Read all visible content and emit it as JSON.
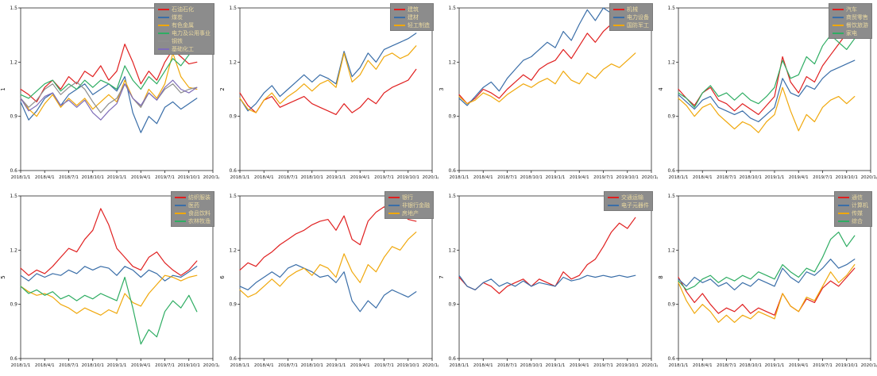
{
  "figure": {
    "background": "#ffffff",
    "axis_color": "#262626",
    "tick_label_color": "#1a1a1a",
    "legend_bg": "#8c8c8c",
    "legend_text_color": "#ead9a0",
    "y_tick_labels": [
      "0.6",
      "0.9",
      "1.2",
      "1.5"
    ],
    "x_tick_labels": [
      "2018/1/1",
      "2018/4/1",
      "2018/7/1",
      "2018/10/1",
      "2019/1/1",
      "2019/4/1",
      "2019/7/1",
      "2019/10/1",
      "2020/1/1"
    ],
    "x_axis_month_range": [
      0,
      24
    ],
    "x_month_indices": [
      0,
      1,
      2,
      3,
      4,
      5,
      6,
      7,
      8,
      9,
      10,
      11,
      12,
      13,
      14,
      15,
      16,
      17,
      18,
      19,
      20,
      21,
      22
    ]
  },
  "palette": {
    "red": "#e02020",
    "blue": "#3a6ea8",
    "yellow": "#f0a80c",
    "green": "#2fad63",
    "gray": "#8f8f8f",
    "purple": "#7e6cb8"
  },
  "chart_data": [
    {
      "type": "line",
      "ylabel": "1",
      "ylim": [
        0.6,
        1.5
      ],
      "grid": false,
      "legend_position": "top-right",
      "series": [
        {
          "name": "石油石化",
          "color": "red",
          "values": [
            1.05,
            1.02,
            0.98,
            1.06,
            1.1,
            1.05,
            1.12,
            1.08,
            1.15,
            1.12,
            1.18,
            1.1,
            1.15,
            1.3,
            1.2,
            1.08,
            1.15,
            1.1,
            1.2,
            1.27,
            1.23,
            1.19,
            1.2
          ]
        },
        {
          "name": "煤炭",
          "color": "blue",
          "values": [
            0.98,
            0.88,
            0.93,
            1.0,
            1.03,
            0.96,
            1.02,
            1.05,
            1.08,
            1.02,
            1.05,
            1.08,
            1.04,
            1.12,
            0.92,
            0.81,
            0.9,
            0.86,
            0.95,
            0.98,
            0.94,
            0.97,
            1.0
          ]
        },
        {
          "name": "有色金属",
          "color": "yellow",
          "values": [
            1.0,
            0.94,
            0.9,
            0.97,
            1.02,
            0.95,
            1.0,
            0.96,
            1.0,
            0.94,
            0.98,
            1.02,
            0.98,
            1.1,
            1.0,
            0.95,
            1.05,
            1.0,
            1.08,
            1.25,
            1.12,
            1.06,
            1.05
          ]
        },
        {
          "name": "电力及公用事业",
          "color": "green",
          "values": [
            1.02,
            1.0,
            1.04,
            1.08,
            1.1,
            1.04,
            1.08,
            1.05,
            1.1,
            1.06,
            1.1,
            1.08,
            1.05,
            1.18,
            1.1,
            1.05,
            1.12,
            1.08,
            1.15,
            1.22,
            1.18,
            1.24,
            1.28
          ]
        },
        {
          "name": "钢铁",
          "color": "gray",
          "values": [
            1.0,
            0.95,
            0.99,
            1.05,
            1.08,
            1.02,
            1.06,
            1.09,
            1.05,
            0.98,
            0.92,
            0.97,
            1.0,
            1.08,
            1.0,
            0.95,
            1.03,
            0.99,
            1.05,
            1.08,
            1.03,
            1.05,
            1.06
          ]
        },
        {
          "name": "基础化工",
          "color": "purple",
          "values": [
            1.0,
            0.93,
            0.96,
            1.01,
            1.03,
            0.96,
            0.99,
            0.95,
            0.99,
            0.92,
            0.88,
            0.93,
            0.97,
            1.08,
            1.0,
            0.96,
            1.03,
            0.99,
            1.06,
            1.1,
            1.05,
            1.03,
            1.06
          ]
        }
      ]
    },
    {
      "type": "line",
      "ylabel": "2",
      "ylim": [
        0.6,
        1.5
      ],
      "grid": false,
      "legend_position": "top-right",
      "series": [
        {
          "name": "建筑",
          "color": "red",
          "values": [
            1.03,
            0.96,
            0.92,
            0.99,
            1.01,
            0.95,
            0.97,
            0.99,
            1.01,
            0.97,
            0.95,
            0.93,
            0.91,
            0.97,
            0.92,
            0.95,
            1.0,
            0.97,
            1.03,
            1.06,
            1.08,
            1.1,
            1.16
          ]
        },
        {
          "name": "建材",
          "color": "blue",
          "values": [
            1.0,
            0.93,
            0.97,
            1.03,
            1.07,
            1.01,
            1.05,
            1.09,
            1.13,
            1.09,
            1.13,
            1.11,
            1.08,
            1.26,
            1.12,
            1.17,
            1.25,
            1.2,
            1.27,
            1.29,
            1.31,
            1.33,
            1.36
          ]
        },
        {
          "name": "轻工制造",
          "color": "yellow",
          "values": [
            1.0,
            0.94,
            0.92,
            0.99,
            1.03,
            0.97,
            1.01,
            1.04,
            1.08,
            1.04,
            1.08,
            1.1,
            1.06,
            1.25,
            1.09,
            1.13,
            1.21,
            1.16,
            1.23,
            1.25,
            1.22,
            1.24,
            1.29
          ]
        }
      ]
    },
    {
      "type": "line",
      "ylabel": "3",
      "ylim": [
        0.6,
        1.5
      ],
      "grid": false,
      "legend_position": "top-right",
      "series": [
        {
          "name": "机械",
          "color": "red",
          "values": [
            1.02,
            0.97,
            1.0,
            1.05,
            1.03,
            1.0,
            1.05,
            1.09,
            1.13,
            1.1,
            1.16,
            1.19,
            1.21,
            1.27,
            1.22,
            1.29,
            1.36,
            1.31,
            1.37,
            1.41,
            1.39,
            1.43,
            1.48
          ]
        },
        {
          "name": "电力设备",
          "color": "blue",
          "values": [
            1.0,
            0.96,
            1.01,
            1.06,
            1.09,
            1.04,
            1.11,
            1.16,
            1.21,
            1.23,
            1.27,
            1.31,
            1.28,
            1.37,
            1.32,
            1.41,
            1.49,
            1.43,
            1.5,
            1.47,
            1.49,
            1.5,
            1.5
          ]
        },
        {
          "name": "国防军工",
          "color": "yellow",
          "values": [
            1.01,
            0.97,
            0.99,
            1.03,
            1.01,
            0.98,
            1.02,
            1.05,
            1.08,
            1.06,
            1.09,
            1.11,
            1.08,
            1.15,
            1.1,
            1.08,
            1.14,
            1.11,
            1.16,
            1.19,
            1.17,
            1.21,
            1.25
          ]
        }
      ]
    },
    {
      "type": "line",
      "ylabel": "4",
      "ylim": [
        0.6,
        1.5
      ],
      "grid": false,
      "legend_position": "top-right",
      "series": [
        {
          "name": "汽车",
          "color": "red",
          "values": [
            1.05,
            1.0,
            0.96,
            1.03,
            1.06,
            0.99,
            0.97,
            0.93,
            0.97,
            0.94,
            0.91,
            0.96,
            1.01,
            1.23,
            1.09,
            1.03,
            1.12,
            1.09,
            1.18,
            1.24,
            1.3,
            1.36,
            1.43
          ]
        },
        {
          "name": "商贸零售",
          "color": "blue",
          "values": [
            1.02,
            0.98,
            0.94,
            0.99,
            1.01,
            0.95,
            0.93,
            0.91,
            0.93,
            0.89,
            0.87,
            0.91,
            0.95,
            1.11,
            1.03,
            1.01,
            1.07,
            1.05,
            1.11,
            1.15,
            1.17,
            1.19,
            1.21
          ]
        },
        {
          "name": "餐饮旅游",
          "color": "yellow",
          "values": [
            1.0,
            0.96,
            0.9,
            0.95,
            0.97,
            0.91,
            0.87,
            0.83,
            0.87,
            0.85,
            0.81,
            0.87,
            0.91,
            1.06,
            0.93,
            0.82,
            0.91,
            0.87,
            0.95,
            0.99,
            1.01,
            0.97,
            1.01
          ]
        },
        {
          "name": "家电",
          "color": "green",
          "values": [
            1.03,
            1.0,
            0.95,
            1.03,
            1.07,
            1.01,
            1.03,
            0.99,
            1.03,
            0.99,
            0.97,
            1.01,
            1.06,
            1.21,
            1.11,
            1.13,
            1.23,
            1.19,
            1.29,
            1.35,
            1.31,
            1.27,
            1.33
          ]
        }
      ]
    },
    {
      "type": "line",
      "ylabel": "5",
      "ylim": [
        0.6,
        1.5
      ],
      "grid": false,
      "legend_position": "top-right",
      "series": [
        {
          "name": "纺织服装",
          "color": "red",
          "values": [
            1.1,
            1.06,
            1.09,
            1.07,
            1.11,
            1.16,
            1.21,
            1.19,
            1.26,
            1.31,
            1.43,
            1.34,
            1.21,
            1.16,
            1.11,
            1.09,
            1.16,
            1.19,
            1.13,
            1.09,
            1.06,
            1.09,
            1.14
          ]
        },
        {
          "name": "医药",
          "color": "blue",
          "values": [
            1.06,
            1.03,
            1.07,
            1.05,
            1.07,
            1.06,
            1.09,
            1.07,
            1.11,
            1.09,
            1.11,
            1.1,
            1.06,
            1.11,
            1.09,
            1.05,
            1.09,
            1.07,
            1.03,
            1.06,
            1.05,
            1.08,
            1.11
          ]
        },
        {
          "name": "食品饮料",
          "color": "yellow",
          "values": [
            1.0,
            0.97,
            0.95,
            0.96,
            0.94,
            0.9,
            0.88,
            0.85,
            0.88,
            0.86,
            0.84,
            0.87,
            0.85,
            0.96,
            0.91,
            0.89,
            0.96,
            1.01,
            1.06,
            1.05,
            1.03,
            1.05,
            1.06
          ]
        },
        {
          "name": "农林牧渔",
          "color": "green",
          "values": [
            1.0,
            0.96,
            0.98,
            0.95,
            0.97,
            0.93,
            0.95,
            0.92,
            0.95,
            0.93,
            0.96,
            0.94,
            0.92,
            1.05,
            0.88,
            0.68,
            0.76,
            0.72,
            0.86,
            0.92,
            0.88,
            0.95,
            0.86
          ]
        }
      ]
    },
    {
      "type": "line",
      "ylabel": "6",
      "ylim": [
        0.6,
        1.5
      ],
      "grid": false,
      "legend_position": "top-right",
      "series": [
        {
          "name": "银行",
          "color": "red",
          "values": [
            1.09,
            1.13,
            1.11,
            1.16,
            1.19,
            1.23,
            1.26,
            1.29,
            1.31,
            1.34,
            1.36,
            1.37,
            1.31,
            1.39,
            1.26,
            1.23,
            1.36,
            1.41,
            1.44,
            1.39,
            1.43,
            1.37,
            1.36
          ]
        },
        {
          "name": "非银行金融",
          "color": "blue",
          "values": [
            1.0,
            0.98,
            1.02,
            1.05,
            1.08,
            1.05,
            1.1,
            1.12,
            1.1,
            1.08,
            1.05,
            1.06,
            1.02,
            1.08,
            0.92,
            0.86,
            0.92,
            0.88,
            0.95,
            0.98,
            0.96,
            0.94,
            0.97
          ]
        },
        {
          "name": "房地产",
          "color": "yellow",
          "values": [
            0.98,
            0.94,
            0.96,
            1.0,
            1.04,
            1.0,
            1.05,
            1.08,
            1.1,
            1.06,
            1.12,
            1.1,
            1.05,
            1.18,
            1.08,
            1.02,
            1.12,
            1.08,
            1.16,
            1.22,
            1.2,
            1.26,
            1.3
          ]
        }
      ]
    },
    {
      "type": "line",
      "ylabel": "7",
      "ylim": [
        0.6,
        1.5
      ],
      "grid": false,
      "legend_position": "top-right",
      "series": [
        {
          "name": "交通运输",
          "color": "red",
          "values": [
            1.05,
            1.0,
            0.98,
            1.02,
            1.0,
            0.96,
            1.0,
            1.02,
            1.04,
            1.0,
            1.04,
            1.02,
            1.0,
            1.08,
            1.04,
            1.06,
            1.12,
            1.15,
            1.22,
            1.3,
            1.35,
            1.32,
            1.38
          ]
        },
        {
          "name": "电子元器件",
          "color": "blue",
          "values": [
            1.06,
            1.0,
            0.98,
            1.02,
            1.04,
            1.0,
            1.02,
            1.0,
            1.03,
            1.0,
            1.02,
            1.01,
            1.0,
            1.05,
            1.03,
            1.04,
            1.06,
            1.05,
            1.06,
            1.05,
            1.06,
            1.05,
            1.06
          ]
        }
      ]
    },
    {
      "type": "line",
      "ylabel": "8",
      "ylim": [
        0.6,
        1.5
      ],
      "grid": false,
      "legend_position": "top-right",
      "series": [
        {
          "name": "通信",
          "color": "red",
          "values": [
            1.05,
            0.97,
            0.91,
            0.96,
            0.9,
            0.85,
            0.88,
            0.86,
            0.9,
            0.85,
            0.88,
            0.86,
            0.84,
            0.96,
            0.89,
            0.86,
            0.93,
            0.91,
            0.99,
            1.03,
            1.0,
            1.05,
            1.1
          ]
        },
        {
          "name": "计算机",
          "color": "blue",
          "values": [
            1.04,
            1.0,
            1.05,
            1.02,
            1.04,
            1.0,
            1.02,
            0.98,
            1.02,
            1.0,
            1.04,
            1.02,
            1.0,
            1.1,
            1.05,
            1.02,
            1.08,
            1.06,
            1.1,
            1.15,
            1.1,
            1.12,
            1.15
          ]
        },
        {
          "name": "传媒",
          "color": "yellow",
          "values": [
            1.02,
            0.92,
            0.85,
            0.9,
            0.86,
            0.8,
            0.84,
            0.8,
            0.84,
            0.82,
            0.86,
            0.84,
            0.82,
            0.96,
            0.89,
            0.86,
            0.94,
            0.92,
            1.0,
            1.08,
            1.02,
            1.06,
            1.12
          ]
        },
        {
          "name": "综合",
          "color": "green",
          "values": [
            1.03,
            0.98,
            1.0,
            1.04,
            1.06,
            1.02,
            1.05,
            1.03,
            1.06,
            1.04,
            1.08,
            1.06,
            1.04,
            1.12,
            1.08,
            1.05,
            1.1,
            1.08,
            1.16,
            1.26,
            1.3,
            1.22,
            1.28
          ]
        }
      ]
    }
  ]
}
